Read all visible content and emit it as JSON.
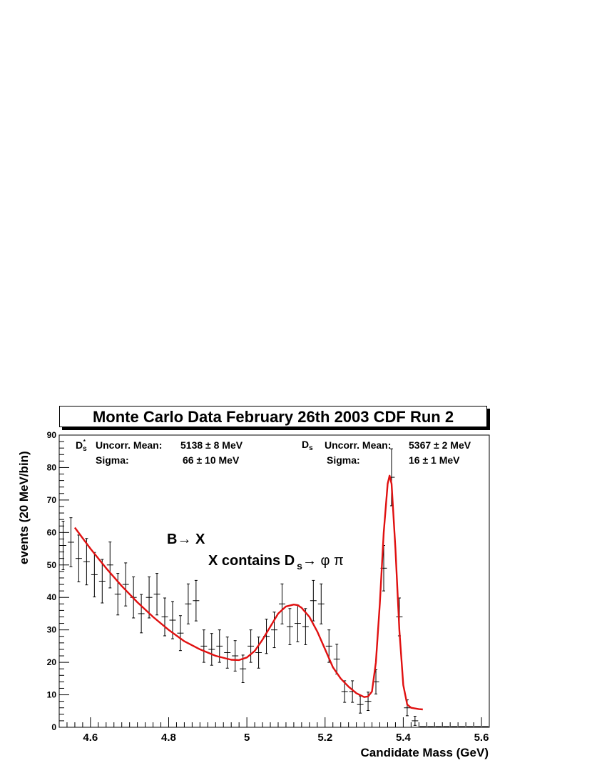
{
  "chart_data": {
    "type": "scatter",
    "title": "Monte Carlo Data February 26th 2003   CDF Run 2",
    "xlabel": "Candidate Mass (GeV)",
    "ylabel": "events (20 MeV/bin)",
    "xlim": [
      4.52,
      5.62
    ],
    "ylim": [
      0,
      90
    ],
    "x_ticks": [
      "4.6",
      "4.8",
      "5",
      "5.2",
      "5.4",
      "5.6"
    ],
    "y_ticks": [
      "0",
      "10",
      "20",
      "30",
      "40",
      "50",
      "60",
      "70",
      "80",
      "90"
    ],
    "grid": false,
    "bin_width": 0.02,
    "series": [
      {
        "kind": "histogram-points-with-error-bars",
        "x": [
          4.53,
          4.55,
          4.57,
          4.59,
          4.61,
          4.63,
          4.65,
          4.67,
          4.69,
          4.71,
          4.73,
          4.75,
          4.77,
          4.79,
          4.81,
          4.83,
          4.85,
          4.87,
          4.89,
          4.91,
          4.93,
          4.95,
          4.97,
          4.99,
          5.01,
          5.03,
          5.05,
          5.07,
          5.09,
          5.11,
          5.13,
          5.15,
          5.17,
          5.19,
          5.21,
          5.23,
          5.25,
          5.27,
          5.29,
          5.31,
          5.33,
          5.35,
          5.37,
          5.39,
          5.41,
          5.43,
          5.45,
          5.47,
          5.49,
          5.51,
          5.53,
          5.55,
          5.57,
          5.59,
          5.61
        ],
        "y": [
          56,
          57,
          52,
          51,
          47,
          45,
          50,
          41,
          44,
          40,
          35,
          40,
          41,
          34,
          33,
          29,
          38,
          39,
          25,
          24,
          25,
          23,
          22,
          18,
          25,
          23,
          28,
          30,
          38,
          31,
          32,
          31,
          39,
          38,
          25,
          21,
          11,
          11,
          7,
          8,
          14,
          49,
          77,
          34,
          6,
          2,
          0,
          0,
          0,
          0,
          0,
          0,
          0,
          0,
          0
        ]
      },
      {
        "kind": "fit-curve",
        "color": "#e01010",
        "x": [
          4.56,
          4.6,
          4.64,
          4.68,
          4.72,
          4.76,
          4.8,
          4.84,
          4.88,
          4.92,
          4.96,
          4.98,
          5.0,
          5.02,
          5.04,
          5.06,
          5.08,
          5.1,
          5.12,
          5.13,
          5.14,
          5.16,
          5.18,
          5.2,
          5.22,
          5.24,
          5.26,
          5.28,
          5.3,
          5.31,
          5.32,
          5.33,
          5.34,
          5.35,
          5.36,
          5.365,
          5.37,
          5.38,
          5.39,
          5.4,
          5.41,
          5.42,
          5.44,
          5.45
        ],
        "y": [
          61.5,
          55,
          49,
          43.5,
          38.5,
          34,
          30,
          26.5,
          24,
          22,
          20.8,
          20.7,
          21.5,
          23.5,
          27,
          31,
          35,
          37.2,
          37.8,
          37.6,
          36.8,
          34,
          29.5,
          24,
          18.5,
          15,
          12.5,
          10.5,
          9.3,
          9.5,
          11,
          20,
          38,
          60,
          75,
          77.5,
          75,
          55,
          30,
          13,
          7,
          6,
          5.6,
          5.5
        ]
      }
    ],
    "annotations": {
      "left_fit": {
        "particle": "D",
        "particle_sub": "s",
        "particle_sup": "*",
        "mean_label": "Uncorr. Mean:",
        "mean_value": "5138",
        "mean_pm": "±",
        "mean_err": "8 MeV",
        "sigma_label": "Sigma:",
        "sigma_value": "66",
        "sigma_pm": "±",
        "sigma_err": "10 MeV"
      },
      "right_fit": {
        "particle": "D",
        "particle_sub": "s",
        "mean_label": "Uncorr. Mean:",
        "mean_value": "5367",
        "mean_pm": "±",
        "mean_err": "2 MeV",
        "sigma_label": "Sigma:",
        "sigma_value": "16",
        "sigma_pm": "±",
        "sigma_err": "1 MeV"
      },
      "decay_line1": "B→ X",
      "decay_line2_prefix": "X contains D",
      "decay_line2_sub": "s",
      "decay_line2_suffix": "→ φ π"
    }
  }
}
